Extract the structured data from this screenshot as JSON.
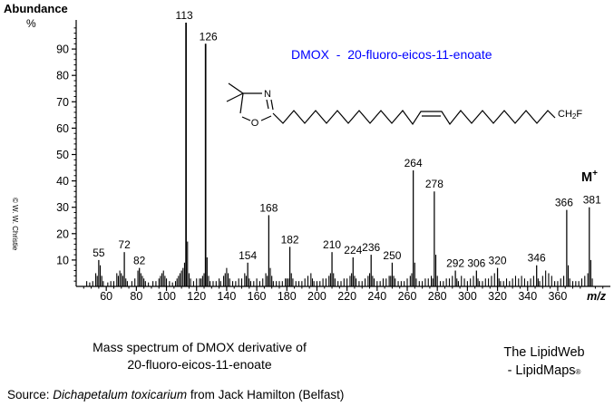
{
  "title": {
    "text": "DMOX  -  20-fluoro-eicos-11-enoate",
    "color": "#0000ff"
  },
  "axes": {
    "y_title": "Abundance",
    "y_unit": "%",
    "x_label": "m/z"
  },
  "watermark": "© W. W. Christie",
  "molecular_ion": {
    "symbol": "M",
    "charge": "+"
  },
  "structure": {
    "n_label": "N",
    "o_label": "O",
    "end_group_pre": "CH",
    "end_group_sub": "2",
    "end_group_post": "F"
  },
  "caption": {
    "line1": "Mass spectrum of DMOX derivative of",
    "line2": "20-fluoro-eicos-11-enoate"
  },
  "credit": {
    "line1": "The LipidWeb",
    "line2": "- LipidMaps",
    "reg_mark": "®"
  },
  "source": {
    "prefix": "Source: ",
    "species": "Dichapetalum toxicarium",
    "suffix": " from Jack Hamilton (Belfast)"
  },
  "chart_data": {
    "type": "bar",
    "title": "DMOX  -  20-fluoro-eicos-11-enoate",
    "xlabel": "m/z",
    "ylabel": "Abundance %",
    "x_range": [
      40,
      395
    ],
    "y_range": [
      0,
      100
    ],
    "x_major_ticks": [
      60,
      80,
      100,
      120,
      140,
      160,
      180,
      200,
      220,
      240,
      260,
      280,
      300,
      320,
      340,
      360
    ],
    "x_minor_step": 5,
    "y_major_ticks": [
      10,
      20,
      30,
      40,
      50,
      60,
      70,
      80,
      90
    ],
    "y_minor_step": 2,
    "grid": false,
    "labeled_peaks": [
      {
        "mz": 55,
        "intensity": 10
      },
      {
        "mz": 72,
        "intensity": 13
      },
      {
        "mz": 82,
        "intensity": 7
      },
      {
        "mz": 113,
        "intensity": 100
      },
      {
        "mz": 126,
        "intensity": 92
      },
      {
        "mz": 154,
        "intensity": 9
      },
      {
        "mz": 168,
        "intensity": 27
      },
      {
        "mz": 182,
        "intensity": 15
      },
      {
        "mz": 210,
        "intensity": 13
      },
      {
        "mz": 224,
        "intensity": 11
      },
      {
        "mz": 236,
        "intensity": 12
      },
      {
        "mz": 250,
        "intensity": 9
      },
      {
        "mz": 264,
        "intensity": 44
      },
      {
        "mz": 278,
        "intensity": 36
      },
      {
        "mz": 292,
        "intensity": 6
      },
      {
        "mz": 306,
        "intensity": 6
      },
      {
        "mz": 320,
        "intensity": 7
      },
      {
        "mz": 346,
        "intensity": 8
      },
      {
        "mz": 366,
        "intensity": 29
      },
      {
        "mz": 381,
        "intensity": 30,
        "note": "M+"
      }
    ],
    "unlabeled_peaks": [
      [
        47,
        2
      ],
      [
        49,
        1.5
      ],
      [
        51,
        2
      ],
      [
        53,
        5
      ],
      [
        54,
        4
      ],
      [
        56,
        8
      ],
      [
        57,
        4
      ],
      [
        58,
        2
      ],
      [
        61,
        1.5
      ],
      [
        63,
        2
      ],
      [
        65,
        2
      ],
      [
        67,
        5
      ],
      [
        68,
        4
      ],
      [
        69,
        6
      ],
      [
        70,
        5
      ],
      [
        71,
        4
      ],
      [
        73,
        3
      ],
      [
        74,
        2
      ],
      [
        77,
        2
      ],
      [
        79,
        3
      ],
      [
        81,
        6
      ],
      [
        83,
        5
      ],
      [
        84,
        4
      ],
      [
        85,
        3
      ],
      [
        86,
        2
      ],
      [
        88,
        1.5
      ],
      [
        91,
        2
      ],
      [
        93,
        2
      ],
      [
        95,
        3
      ],
      [
        96,
        4
      ],
      [
        97,
        5
      ],
      [
        98,
        6
      ],
      [
        99,
        4
      ],
      [
        100,
        3
      ],
      [
        102,
        2
      ],
      [
        104,
        1.5
      ],
      [
        106,
        2
      ],
      [
        107,
        3
      ],
      [
        108,
        4
      ],
      [
        109,
        5
      ],
      [
        110,
        6
      ],
      [
        111,
        7
      ],
      [
        112,
        9
      ],
      [
        114,
        17
      ],
      [
        115,
        5
      ],
      [
        116,
        3
      ],
      [
        118,
        2
      ],
      [
        120,
        3
      ],
      [
        122,
        3
      ],
      [
        123,
        3
      ],
      [
        124,
        4
      ],
      [
        125,
        5
      ],
      [
        127,
        11
      ],
      [
        128,
        4
      ],
      [
        129,
        2
      ],
      [
        131,
        2
      ],
      [
        133,
        2
      ],
      [
        135,
        3
      ],
      [
        136,
        2
      ],
      [
        138,
        4
      ],
      [
        139,
        5
      ],
      [
        140,
        7
      ],
      [
        141,
        5
      ],
      [
        142,
        3
      ],
      [
        144,
        2
      ],
      [
        146,
        2
      ],
      [
        148,
        3
      ],
      [
        150,
        3
      ],
      [
        152,
        5
      ],
      [
        153,
        4
      ],
      [
        155,
        3
      ],
      [
        156,
        2
      ],
      [
        158,
        2
      ],
      [
        160,
        3
      ],
      [
        162,
        2
      ],
      [
        164,
        3
      ],
      [
        166,
        5
      ],
      [
        167,
        4
      ],
      [
        169,
        7
      ],
      [
        170,
        4
      ],
      [
        171,
        2
      ],
      [
        173,
        2
      ],
      [
        175,
        2
      ],
      [
        177,
        2
      ],
      [
        179,
        3
      ],
      [
        180,
        3
      ],
      [
        181,
        3
      ],
      [
        183,
        5
      ],
      [
        184,
        3
      ],
      [
        186,
        2
      ],
      [
        188,
        2
      ],
      [
        190,
        2
      ],
      [
        192,
        3
      ],
      [
        194,
        4
      ],
      [
        196,
        5
      ],
      [
        197,
        3
      ],
      [
        198,
        2
      ],
      [
        200,
        2
      ],
      [
        202,
        2
      ],
      [
        204,
        3
      ],
      [
        206,
        3
      ],
      [
        208,
        4
      ],
      [
        209,
        5
      ],
      [
        211,
        5
      ],
      [
        212,
        3
      ],
      [
        214,
        2
      ],
      [
        216,
        2
      ],
      [
        218,
        3
      ],
      [
        220,
        3
      ],
      [
        222,
        4
      ],
      [
        223,
        5
      ],
      [
        225,
        4
      ],
      [
        226,
        3
      ],
      [
        228,
        2
      ],
      [
        230,
        2
      ],
      [
        232,
        3
      ],
      [
        234,
        4
      ],
      [
        235,
        5
      ],
      [
        237,
        4
      ],
      [
        238,
        3
      ],
      [
        240,
        2
      ],
      [
        242,
        2
      ],
      [
        244,
        3
      ],
      [
        246,
        3
      ],
      [
        248,
        4
      ],
      [
        249,
        4
      ],
      [
        251,
        4
      ],
      [
        252,
        3
      ],
      [
        254,
        2
      ],
      [
        256,
        2
      ],
      [
        258,
        2
      ],
      [
        260,
        3
      ],
      [
        262,
        4
      ],
      [
        263,
        5
      ],
      [
        265,
        9
      ],
      [
        266,
        3
      ],
      [
        268,
        2
      ],
      [
        270,
        2
      ],
      [
        272,
        3
      ],
      [
        274,
        3
      ],
      [
        276,
        4
      ],
      [
        277,
        3
      ],
      [
        279,
        12
      ],
      [
        280,
        4
      ],
      [
        282,
        2
      ],
      [
        284,
        2
      ],
      [
        286,
        3
      ],
      [
        288,
        3
      ],
      [
        290,
        4
      ],
      [
        293,
        3
      ],
      [
        294,
        2
      ],
      [
        296,
        4
      ],
      [
        298,
        3
      ],
      [
        300,
        2
      ],
      [
        302,
        3
      ],
      [
        304,
        4
      ],
      [
        307,
        3
      ],
      [
        308,
        2
      ],
      [
        310,
        2
      ],
      [
        312,
        3
      ],
      [
        314,
        3
      ],
      [
        316,
        4
      ],
      [
        318,
        5
      ],
      [
        321,
        3
      ],
      [
        322,
        2
      ],
      [
        324,
        2
      ],
      [
        326,
        3
      ],
      [
        328,
        2
      ],
      [
        330,
        3
      ],
      [
        332,
        4
      ],
      [
        334,
        3
      ],
      [
        336,
        4
      ],
      [
        338,
        3
      ],
      [
        340,
        2
      ],
      [
        342,
        3
      ],
      [
        344,
        4
      ],
      [
        347,
        3
      ],
      [
        348,
        2
      ],
      [
        350,
        4
      ],
      [
        352,
        6
      ],
      [
        354,
        5
      ],
      [
        356,
        4
      ],
      [
        358,
        2
      ],
      [
        360,
        2
      ],
      [
        362,
        3
      ],
      [
        364,
        4
      ],
      [
        367,
        8
      ],
      [
        368,
        3
      ],
      [
        370,
        2
      ],
      [
        372,
        2
      ],
      [
        374,
        2
      ],
      [
        376,
        3
      ],
      [
        378,
        4
      ],
      [
        380,
        5
      ],
      [
        382,
        10
      ],
      [
        383,
        3
      ]
    ]
  }
}
